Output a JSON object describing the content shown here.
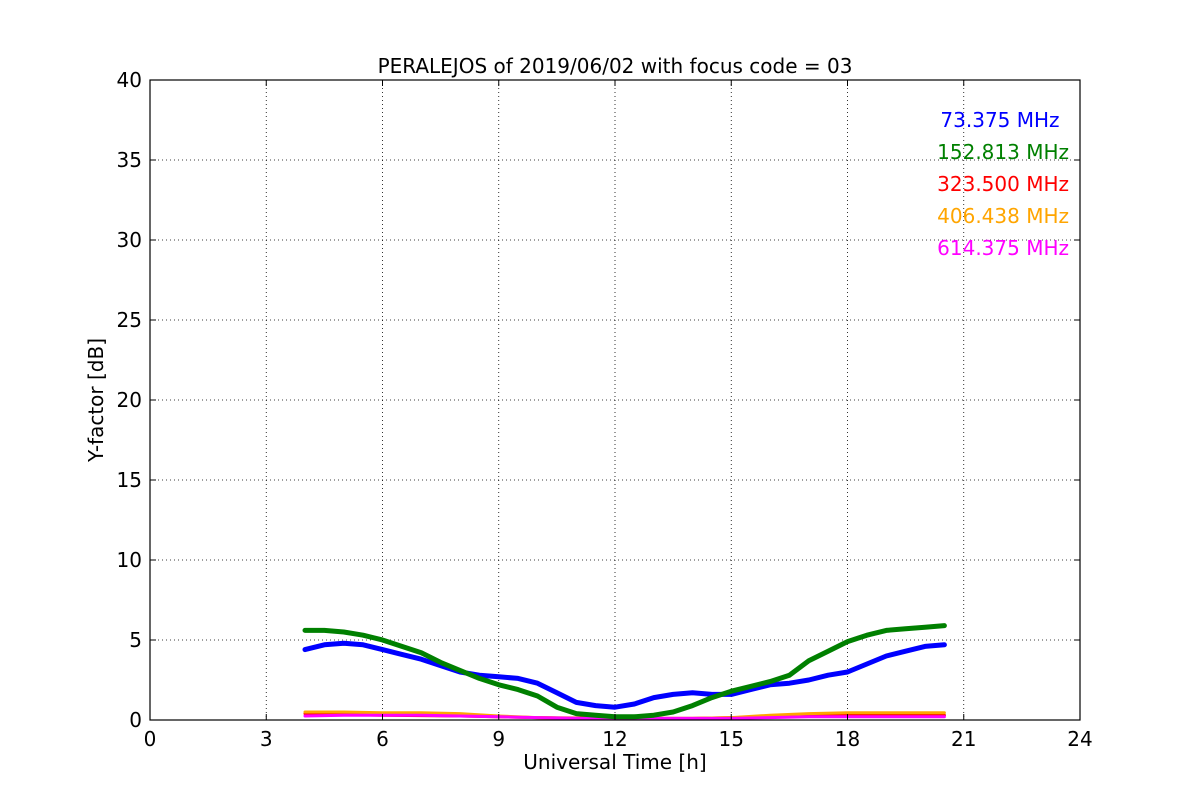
{
  "chart_data": {
    "type": "line",
    "title": "PERALEJOS of 2019/06/02 with focus code = 03",
    "xlabel": "Universal Time [h]",
    "ylabel": "Y-factor [dB]",
    "xlim": [
      0,
      24
    ],
    "ylim": [
      0,
      40
    ],
    "xticks": [
      0,
      3,
      6,
      9,
      12,
      15,
      18,
      21,
      24
    ],
    "yticks": [
      0,
      5,
      10,
      15,
      20,
      25,
      30,
      35,
      40
    ],
    "grid": true,
    "legend_position": "top-right",
    "series": [
      {
        "name": "73.375 MHz",
        "color": "#0000ff",
        "x": [
          4,
          4.5,
          5,
          5.5,
          6,
          6.5,
          7,
          7.5,
          8,
          8.5,
          9,
          9.5,
          10,
          10.5,
          11,
          11.5,
          12,
          12.5,
          13,
          13.5,
          14,
          14.5,
          15,
          15.5,
          16,
          16.5,
          17,
          17.5,
          18,
          18.5,
          19,
          19.5,
          20,
          20.5
        ],
        "values": [
          4.4,
          4.7,
          4.8,
          4.7,
          4.4,
          4.1,
          3.8,
          3.4,
          3.0,
          2.8,
          2.7,
          2.6,
          2.3,
          1.7,
          1.1,
          0.9,
          0.8,
          1.0,
          1.4,
          1.6,
          1.7,
          1.6,
          1.6,
          1.9,
          2.2,
          2.3,
          2.5,
          2.8,
          3.0,
          3.5,
          4.0,
          4.3,
          4.6,
          4.7
        ]
      },
      {
        "name": "152.813 MHz",
        "color": "#008000",
        "x": [
          4,
          4.5,
          5,
          5.5,
          6,
          6.5,
          7,
          7.5,
          8,
          8.5,
          9,
          9.5,
          10,
          10.5,
          11,
          11.5,
          12,
          12.5,
          13,
          13.5,
          14,
          14.5,
          15,
          15.5,
          16,
          16.5,
          17,
          17.5,
          18,
          18.5,
          19,
          19.5,
          20,
          20.5
        ],
        "values": [
          5.6,
          5.6,
          5.5,
          5.3,
          5.0,
          4.6,
          4.2,
          3.6,
          3.1,
          2.6,
          2.2,
          1.9,
          1.5,
          0.8,
          0.4,
          0.3,
          0.2,
          0.2,
          0.3,
          0.5,
          0.9,
          1.4,
          1.8,
          2.1,
          2.4,
          2.8,
          3.7,
          4.3,
          4.9,
          5.3,
          5.6,
          5.7,
          5.8,
          5.9
        ]
      },
      {
        "name": "323.500 MHz",
        "color": "#ff0000",
        "x": [
          4,
          6,
          8,
          10,
          12,
          14,
          16,
          18,
          20.5
        ],
        "values": [
          0.4,
          0.3,
          0.25,
          0.15,
          0.1,
          0.1,
          0.2,
          0.3,
          0.3
        ]
      },
      {
        "name": "406.438 MHz",
        "color": "#ffa500",
        "x": [
          4,
          5,
          6,
          7,
          8,
          9,
          10,
          11,
          12,
          13,
          14,
          15,
          16,
          17,
          18,
          19,
          20,
          20.5
        ],
        "values": [
          0.5,
          0.5,
          0.45,
          0.45,
          0.4,
          0.25,
          0.15,
          0.1,
          0.1,
          0.1,
          0.1,
          0.15,
          0.3,
          0.4,
          0.45,
          0.45,
          0.45,
          0.45
        ]
      },
      {
        "name": "614.375 MHz",
        "color": "#ff00ff",
        "x": [
          4,
          5,
          6,
          7,
          8,
          9,
          10,
          11,
          12,
          13,
          14,
          15,
          16,
          17,
          18,
          19,
          20,
          20.5
        ],
        "values": [
          0.25,
          0.3,
          0.3,
          0.3,
          0.25,
          0.2,
          0.15,
          0.1,
          0.1,
          0.1,
          0.1,
          0.1,
          0.15,
          0.2,
          0.2,
          0.2,
          0.2,
          0.2
        ]
      }
    ]
  }
}
